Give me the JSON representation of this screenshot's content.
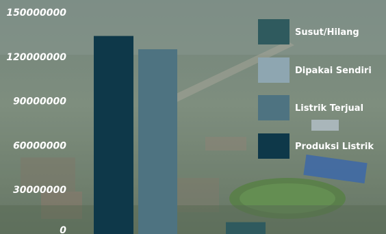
{
  "chart_data": {
    "type": "bar",
    "title": "",
    "xlabel": "",
    "ylabel": "",
    "ylim": [
      0,
      150000000
    ],
    "yticks": [
      0,
      30000000,
      60000000,
      90000000,
      120000000,
      150000000
    ],
    "ytick_labels": [
      "0",
      "30000000",
      "60000000",
      "90000000",
      "120000000",
      "150000000"
    ],
    "legend_position": "right",
    "series": [
      {
        "name": "Produksi Listrik",
        "color": "#0e3849",
        "value": 134000000
      },
      {
        "name": "Listrik Terjual",
        "color": "#4e7381",
        "value": 125000000
      },
      {
        "name": "Dipakai Sendiri",
        "color": "#8ea6b1",
        "value": 0
      },
      {
        "name": "Susut/Hilang",
        "color": "#2f5a5e",
        "value": 8000000
      }
    ],
    "legend_order": [
      "Susut/Hilang",
      "Dipakai Sendiri",
      "Listrik Terjual",
      "Produksi Listrik"
    ]
  }
}
